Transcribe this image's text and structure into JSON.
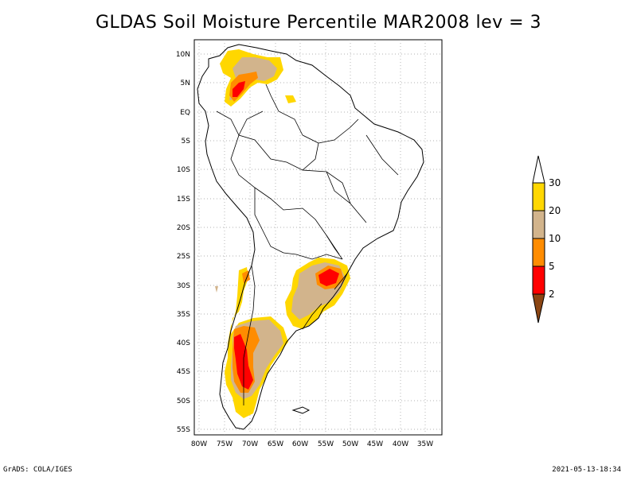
{
  "title": "GLDAS Soil Moisture Percentile MAR2008 lev = 3",
  "footer": {
    "left": "GrADS: COLA/IGES",
    "right": "2021-05-13-18:34"
  },
  "axes": {
    "lat_labels": [
      "10N",
      "5N",
      "EQ",
      "5S",
      "10S",
      "15S",
      "20S",
      "25S",
      "30S",
      "35S",
      "40S",
      "45S",
      "50S",
      "55S"
    ],
    "lon_labels": [
      "80W",
      "75W",
      "70W",
      "65W",
      "60W",
      "55W",
      "50W",
      "45W",
      "40W",
      "35W"
    ]
  },
  "colorbar": {
    "labels": [
      "30",
      "20",
      "10",
      "5",
      "2"
    ],
    "colors": {
      "above_30": "#ffffff",
      "20_30": "#ffd700",
      "10_20": "#d2b48c",
      "5_10": "#ff8c00",
      "2_5": "#ff0000",
      "below_2": "#8b4513"
    }
  }
}
